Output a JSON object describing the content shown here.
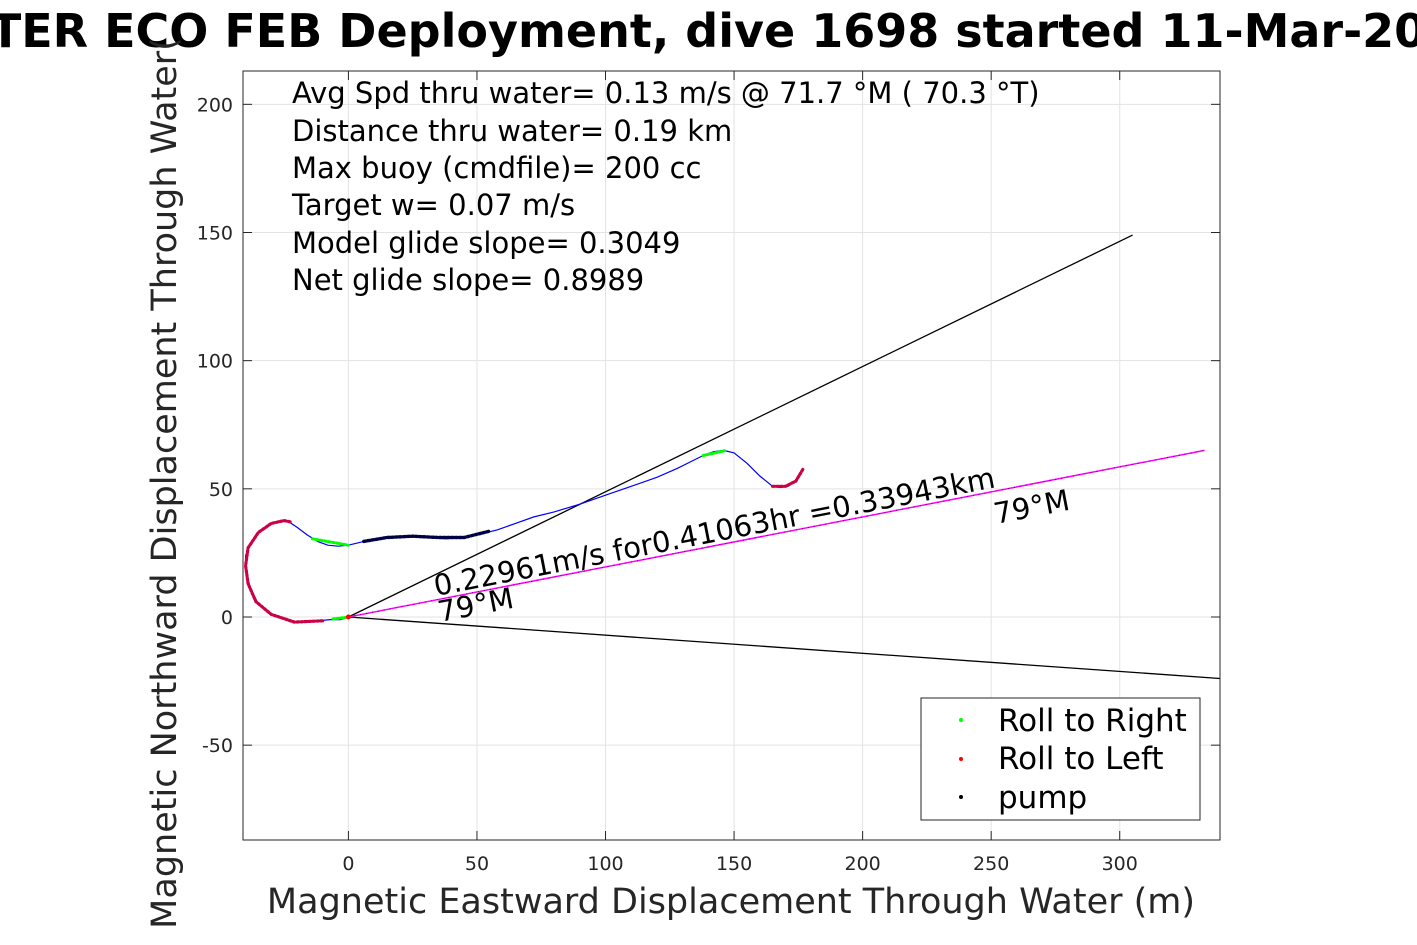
{
  "chart_data": {
    "type": "scatter",
    "title": "TER ECO FEB Deployment, dive 1698 started 11-Mar-20",
    "xlabel": "Magnetic Eastward Displacement Through Water (m)",
    "ylabel": "Magnetic Northward Displacement Through Water(",
    "xlim": [
      -41,
      339
    ],
    "ylim": [
      -87,
      213
    ],
    "xticks": [
      0,
      50,
      100,
      150,
      200,
      250,
      300
    ],
    "yticks": [
      -50,
      0,
      50,
      100,
      150,
      200
    ],
    "grid": true,
    "info_lines": [
      "Avg Spd thru water=  0.13 m/s @  71.7 °M ( 70.3 °T)",
      "Distance thru water=  0.19 km",
      "Max buoy (cmdfile)= 200 cc",
      "Target w= 0.07 m/s",
      "Model glide slope= 0.3049",
      "Net glide slope= 0.8989"
    ],
    "annotations": {
      "current": "0.22961m/s for0.41063hr =0.33943km",
      "heading_near": "79°M",
      "heading_far": "79°M"
    },
    "legend": {
      "position": "bottom-right",
      "entries": [
        {
          "label": "Roll to Right",
          "color": "#00ff00"
        },
        {
          "label": "Roll to Left",
          "color": "#ff0000"
        },
        {
          "label": "pump",
          "color": "#000000"
        }
      ]
    },
    "colors": {
      "track": "#0000ff",
      "current": "#ff00ff",
      "heading_lines": "#000000",
      "roll_left_track": "#cc0044",
      "pump_track": "#000044"
    },
    "track": [
      [
        0,
        0
      ],
      [
        -3,
        -1
      ],
      [
        -7,
        -1
      ],
      [
        -12,
        -1.5
      ],
      [
        -17,
        -1.8
      ],
      [
        -21,
        -2
      ],
      [
        -25,
        -1
      ],
      [
        -30,
        1
      ],
      [
        -35,
        5
      ],
      [
        -38,
        11
      ],
      [
        -40,
        18
      ],
      [
        -40,
        24
      ],
      [
        -38,
        29
      ],
      [
        -35,
        33
      ],
      [
        -31,
        36
      ],
      [
        -27,
        37.5
      ],
      [
        -23,
        37
      ],
      [
        -20,
        35
      ],
      [
        -16,
        32
      ],
      [
        -12,
        29.5
      ],
      [
        -8,
        28
      ],
      [
        -4,
        27.6
      ],
      [
        0,
        28
      ],
      [
        4,
        29
      ],
      [
        8,
        30
      ],
      [
        14,
        31
      ],
      [
        22,
        31.5
      ],
      [
        30,
        31
      ],
      [
        38,
        30.5
      ],
      [
        45,
        31
      ],
      [
        52,
        32.5
      ],
      [
        58,
        34
      ],
      [
        65,
        36.5
      ],
      [
        72,
        39
      ],
      [
        80,
        41
      ],
      [
        90,
        44
      ],
      [
        100,
        47.5
      ],
      [
        110,
        51
      ],
      [
        120,
        54.5
      ],
      [
        128,
        58
      ],
      [
        134,
        61
      ],
      [
        138,
        63
      ],
      [
        142,
        64.5
      ],
      [
        146,
        65
      ],
      [
        150,
        64
      ],
      [
        155,
        60
      ],
      [
        160,
        55
      ],
      [
        165,
        51
      ],
      [
        168,
        50.5
      ],
      [
        171,
        51
      ],
      [
        174,
        53
      ],
      [
        176,
        56
      ],
      [
        177,
        58
      ]
    ],
    "current_line": [
      [
        0,
        0
      ],
      [
        333,
        65
      ]
    ],
    "heading_lines": [
      [
        [
          0,
          0
        ],
        [
          305,
          149
        ]
      ],
      [
        [
          0,
          0
        ],
        [
          339,
          -24
        ]
      ]
    ],
    "roll_right_segments": [
      [
        [
          -14,
          30.5
        ],
        [
          0,
          28
        ]
      ],
      [
        [
          138,
          63
        ],
        [
          147,
          65
        ]
      ],
      [
        [
          -6,
          -0.8
        ],
        [
          0,
          0
        ]
      ]
    ],
    "roll_left_segments": [
      [
        [
          -10,
          -1.5
        ],
        [
          -21,
          -2
        ],
        [
          -30,
          1
        ],
        [
          -36,
          6
        ],
        [
          -39,
          13
        ],
        [
          -40,
          20
        ],
        [
          -39,
          27
        ],
        [
          -35,
          33
        ],
        [
          -30,
          36.5
        ],
        [
          -25,
          37.6
        ],
        [
          -22,
          37
        ]
      ],
      [
        [
          165,
          51
        ],
        [
          170,
          51
        ],
        [
          174,
          53
        ],
        [
          177,
          58
        ]
      ]
    ],
    "pump_segments": [
      [
        [
          6,
          29.5
        ],
        [
          15,
          31
        ],
        [
          25,
          31.5
        ],
        [
          35,
          31
        ],
        [
          45,
          31
        ],
        [
          55,
          33.5
        ]
      ]
    ]
  }
}
